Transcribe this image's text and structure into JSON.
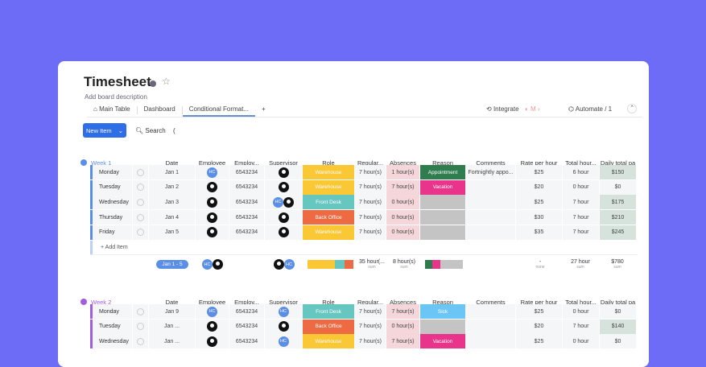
{
  "board": {
    "title": "Timesheet",
    "description": "Add board description"
  },
  "tabs": [
    {
      "label": "Main Table"
    },
    {
      "label": "Dashboard"
    },
    {
      "label": "Conditional Format..."
    },
    {
      "label": "+"
    }
  ],
  "toolbar": {
    "integrate": "Integrate",
    "automate": "Automate / 1",
    "new_item": "New Item",
    "search": "Search",
    "extra": "("
  },
  "columns": [
    "Date",
    "Employee",
    "Employ...",
    "Supervisor",
    "Role",
    "Regular...",
    "Absences",
    "Reason",
    "Comments",
    "Rate per hour",
    "Total hour...",
    "Daily total pa"
  ],
  "colors": {
    "background": "#6c6cf6",
    "week1": "#5b8fe6",
    "week2": "#a25ddc",
    "warehouse": "#fac735",
    "front_desk": "#66c6c0",
    "back_office": "#ee6a42",
    "appointment": "#2f7d4e",
    "vacation": "#e8358b",
    "sick": "#6cc6f5",
    "empty_reason": "#c4c4c4"
  },
  "groups": [
    {
      "name": "Week 1",
      "color": "#5b8fe6",
      "rows": [
        {
          "name": "Monday",
          "date": "Jan 1",
          "employee": "HC",
          "id": "6543234",
          "supervisor": [
            "person"
          ],
          "role": "Warehouse",
          "role_color": "#fac735",
          "regular": "7 hour(s)",
          "absences": "1 hour(s)",
          "reason": "Appointment",
          "reason_color": "#2f7d4e",
          "comments": "Fortnightly appo...",
          "rate": "$25",
          "total": "6 hour",
          "daily": "$150"
        },
        {
          "name": "Tuesday",
          "date": "Jan 2",
          "employee": "person",
          "id": "6543234",
          "supervisor": [
            "person"
          ],
          "role": "Warehouse",
          "role_color": "#fac735",
          "regular": "7 hour(s)",
          "absences": "7 hour(s)",
          "reason": "Vacation",
          "reason_color": "#e8358b",
          "comments": "",
          "rate": "$20",
          "total": "0 hour",
          "daily": "$0"
        },
        {
          "name": "Wednesday",
          "date": "Jan 3",
          "employee": "person",
          "id": "6543234",
          "supervisor": [
            "HC",
            "person"
          ],
          "role": "Front Desk",
          "role_color": "#66c6c0",
          "regular": "7 hour(s)",
          "absences": "0 hour(s)",
          "reason": "",
          "reason_color": "#c4c4c4",
          "comments": "",
          "rate": "$25",
          "total": "7 hour",
          "daily": "$175"
        },
        {
          "name": "Thursday",
          "date": "Jan 4",
          "employee": "person",
          "id": "6543234",
          "supervisor": [
            "person"
          ],
          "role": "Back Office",
          "role_color": "#ee6a42",
          "regular": "7 hour(s)",
          "absences": "0 hour(s)",
          "reason": "",
          "reason_color": "#c4c4c4",
          "comments": "",
          "rate": "$30",
          "total": "7 hour",
          "daily": "$210"
        },
        {
          "name": "Friday",
          "date": "Jan 5",
          "employee": "person",
          "id": "6543234",
          "supervisor": [
            "person"
          ],
          "role": "Warehouse",
          "role_color": "#fac735",
          "regular": "7 hour(s)",
          "absences": "0 hour(s)",
          "reason": "",
          "reason_color": "#c4c4c4",
          "comments": "",
          "rate": "$35",
          "total": "7 hour",
          "daily": "$245"
        }
      ],
      "add_item": "+ Add Item",
      "summary": {
        "date": "Jan 1 - 5",
        "regular": "35 hour(...",
        "regular_label": "sum",
        "absences": "8 hour(s)",
        "absences_label": "sum",
        "rate": "-",
        "rate_label": "none",
        "total": "27 hour",
        "total_label": "sum",
        "daily": "$780",
        "daily_label": "sum"
      }
    },
    {
      "name": "Week 2",
      "color": "#a25ddc",
      "rows": [
        {
          "name": "Monday",
          "date": "Jan 9",
          "employee": "HC",
          "id": "6543234",
          "supervisor": [
            "HC"
          ],
          "role": "Front Desk",
          "role_color": "#66c6c0",
          "regular": "7 hour(s)",
          "absences": "7 hour(s)",
          "reason": "Sick",
          "reason_color": "#6cc6f5",
          "comments": "",
          "rate": "$25",
          "total": "0 hour",
          "daily": "$0"
        },
        {
          "name": "Tuesday",
          "date": "Jan ...",
          "employee": "person",
          "id": "6543234",
          "supervisor": [
            "person"
          ],
          "role": "Back Office",
          "role_color": "#ee6a42",
          "regular": "7 hour(s)",
          "absences": "0 hour(s)",
          "reason": "",
          "reason_color": "#c4c4c4",
          "comments": "",
          "rate": "$20",
          "total": "7 hour",
          "daily": "$140"
        },
        {
          "name": "Wednesday",
          "date": "Jan ...",
          "employee": "person",
          "id": "6543234",
          "supervisor": [
            "HC"
          ],
          "role": "Warehouse",
          "role_color": "#fac735",
          "regular": "7 hour(s)",
          "absences": "7 hour(s)",
          "reason": "Vacation",
          "reason_color": "#e8358b",
          "comments": "",
          "rate": "$25",
          "total": "0 hour",
          "daily": "$0"
        }
      ]
    }
  ]
}
